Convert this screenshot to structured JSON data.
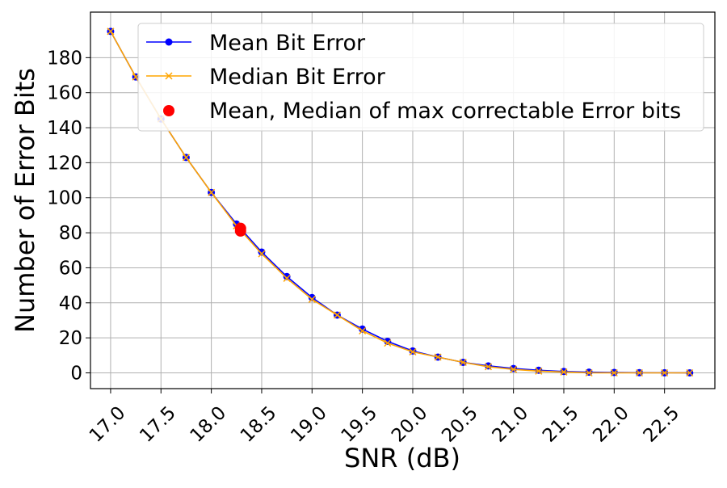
{
  "colors": {
    "mean": "#0000ff",
    "median": "#ffa500",
    "max_correctable": "#ff0000",
    "grid": "#b0b0b0",
    "axes": "#000000",
    "legend_border": "#cccccc"
  },
  "chart_data": {
    "type": "line",
    "xlabel": "SNR (dB)",
    "ylabel": "Number of Error Bits",
    "xlim": [
      16.8,
      23.0
    ],
    "ylim": [
      -9,
      206
    ],
    "grid": true,
    "legend_position": "top-right",
    "x_ticks": [
      17.0,
      17.5,
      18.0,
      18.5,
      19.0,
      19.5,
      20.0,
      20.5,
      21.0,
      21.5,
      22.0,
      22.5
    ],
    "x_tick_labels": [
      "17.0",
      "17.5",
      "18.0",
      "18.5",
      "19.0",
      "19.5",
      "20.0",
      "20.5",
      "21.0",
      "21.5",
      "22.0",
      "22.5"
    ],
    "y_ticks": [
      0,
      20,
      40,
      60,
      80,
      100,
      120,
      140,
      160,
      180
    ],
    "y_tick_labels": [
      "0",
      "20",
      "40",
      "60",
      "80",
      "100",
      "120",
      "140",
      "160",
      "180"
    ],
    "x": [
      17.0,
      17.25,
      17.5,
      17.75,
      18.0,
      18.25,
      18.5,
      18.75,
      19.0,
      19.25,
      19.5,
      19.75,
      20.0,
      20.25,
      20.5,
      20.75,
      21.0,
      21.25,
      21.5,
      21.75,
      22.0,
      22.25,
      22.5,
      22.75
    ],
    "series": [
      {
        "name": "Mean Bit Error",
        "marker": "circle",
        "values": [
          195,
          169,
          145,
          123,
          103,
          85,
          69,
          55,
          43,
          33,
          25,
          18,
          12.5,
          9,
          6,
          4,
          2.5,
          1.5,
          0.8,
          0.4,
          0.2,
          0.1,
          0.05,
          0.02
        ]
      },
      {
        "name": "Median Bit Error",
        "marker": "x",
        "values": [
          195,
          169,
          145,
          123,
          103,
          84,
          68,
          54,
          42,
          33,
          24,
          17,
          12,
          9,
          6,
          3.5,
          2,
          1,
          0.5,
          0,
          0,
          0,
          0,
          0
        ]
      }
    ],
    "points": [
      {
        "name": "Mean, Median of max correctable Error bits",
        "marker": "filled-circle",
        "x": [
          18.29,
          18.29
        ],
        "y": [
          82.5,
          81.0
        ]
      }
    ]
  }
}
